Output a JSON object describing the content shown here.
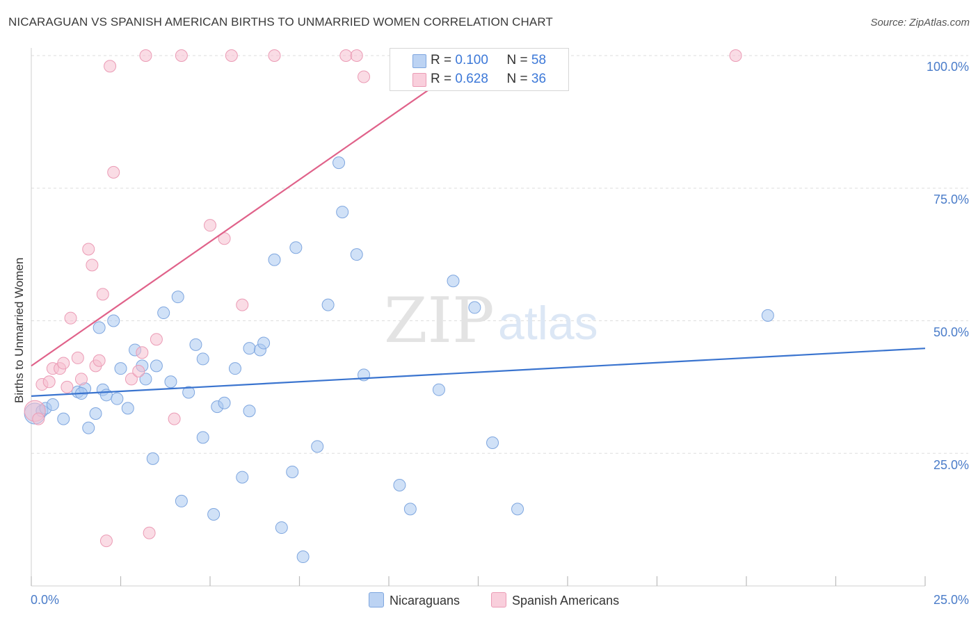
{
  "header": {
    "title": "NICARAGUAN VS SPANISH AMERICAN BIRTHS TO UNMARRIED WOMEN CORRELATION CHART",
    "source": "Source: ZipAtlas.com"
  },
  "watermark": {
    "zip": "ZIP",
    "atlas": "atlas"
  },
  "legend": {
    "r_label": "R =",
    "n_label": "N =",
    "nicaraguans": {
      "r": "0.100",
      "n": "58"
    },
    "spanish": {
      "r": "0.628",
      "n": "36"
    }
  },
  "chart_data": {
    "type": "scatter",
    "title": "NICARAGUAN VS SPANISH AMERICAN BIRTHS TO UNMARRIED WOMEN CORRELATION CHART",
    "xlabel": "",
    "ylabel": "Births to Unmarried Women",
    "xlim": [
      0,
      25
    ],
    "ylim": [
      0,
      102
    ],
    "x_tick_labels": [
      "0.0%",
      "25.0%"
    ],
    "y_tick_labels": [
      "100.0%",
      "75.0%",
      "50.0%",
      "25.0%"
    ],
    "y_ticks": [
      100,
      75,
      50,
      25
    ],
    "colors": {
      "nicaraguans": "#a9c8f0",
      "nicaraguans_line": "#3a74cf",
      "spanish": "#f6bfd0",
      "spanish_line": "#e0628a"
    },
    "series": [
      {
        "name": "Nicaraguans",
        "r": 0.1,
        "n": 58,
        "trend": {
          "x": [
            0,
            25
          ],
          "y": [
            35.8,
            44.8
          ]
        },
        "points": [
          {
            "x": 0.1,
            "y": 32.5,
            "big": true
          },
          {
            "x": 0.3,
            "y": 33.0
          },
          {
            "x": 0.4,
            "y": 33.5
          },
          {
            "x": 0.6,
            "y": 34.2
          },
          {
            "x": 0.9,
            "y": 31.5
          },
          {
            "x": 1.3,
            "y": 36.6
          },
          {
            "x": 1.5,
            "y": 37.2
          },
          {
            "x": 1.4,
            "y": 36.3
          },
          {
            "x": 1.8,
            "y": 32.5
          },
          {
            "x": 1.6,
            "y": 29.8
          },
          {
            "x": 1.9,
            "y": 48.7
          },
          {
            "x": 2.0,
            "y": 37.0
          },
          {
            "x": 2.1,
            "y": 36.0
          },
          {
            "x": 2.3,
            "y": 50.0
          },
          {
            "x": 2.4,
            "y": 35.3
          },
          {
            "x": 2.5,
            "y": 41.0
          },
          {
            "x": 2.7,
            "y": 33.5
          },
          {
            "x": 2.9,
            "y": 44.5
          },
          {
            "x": 3.1,
            "y": 41.5
          },
          {
            "x": 3.2,
            "y": 39.0
          },
          {
            "x": 3.4,
            "y": 24.0
          },
          {
            "x": 3.5,
            "y": 41.5
          },
          {
            "x": 3.7,
            "y": 51.5
          },
          {
            "x": 3.9,
            "y": 38.5
          },
          {
            "x": 4.1,
            "y": 54.5
          },
          {
            "x": 4.2,
            "y": 16.0
          },
          {
            "x": 4.4,
            "y": 36.5
          },
          {
            "x": 4.6,
            "y": 45.5
          },
          {
            "x": 4.8,
            "y": 42.8
          },
          {
            "x": 4.8,
            "y": 28.0
          },
          {
            "x": 5.1,
            "y": 13.5
          },
          {
            "x": 5.2,
            "y": 33.8
          },
          {
            "x": 5.4,
            "y": 34.5
          },
          {
            "x": 5.7,
            "y": 41.0
          },
          {
            "x": 5.9,
            "y": 20.5
          },
          {
            "x": 6.1,
            "y": 33.0
          },
          {
            "x": 6.1,
            "y": 44.8
          },
          {
            "x": 6.4,
            "y": 44.5
          },
          {
            "x": 6.5,
            "y": 45.8
          },
          {
            "x": 6.8,
            "y": 61.5
          },
          {
            "x": 7.0,
            "y": 11.0
          },
          {
            "x": 7.3,
            "y": 21.5
          },
          {
            "x": 7.4,
            "y": 63.8
          },
          {
            "x": 7.6,
            "y": 5.5
          },
          {
            "x": 8.0,
            "y": 26.3
          },
          {
            "x": 8.3,
            "y": 53.0
          },
          {
            "x": 8.6,
            "y": 79.8
          },
          {
            "x": 8.7,
            "y": 70.5
          },
          {
            "x": 9.1,
            "y": 62.5
          },
          {
            "x": 9.3,
            "y": 39.8
          },
          {
            "x": 10.3,
            "y": 19.0
          },
          {
            "x": 10.6,
            "y": 14.5
          },
          {
            "x": 11.4,
            "y": 37.0
          },
          {
            "x": 11.8,
            "y": 57.5
          },
          {
            "x": 12.4,
            "y": 52.5
          },
          {
            "x": 12.9,
            "y": 27.0
          },
          {
            "x": 13.6,
            "y": 14.5
          },
          {
            "x": 20.6,
            "y": 51.0
          }
        ]
      },
      {
        "name": "Spanish Americans",
        "r": 0.628,
        "n": 36,
        "trend": {
          "x": [
            0,
            12.6
          ],
          "y": [
            41.5,
            100.5
          ]
        },
        "points": [
          {
            "x": 0.1,
            "y": 33.0,
            "big": true
          },
          {
            "x": 0.2,
            "y": 31.5
          },
          {
            "x": 0.3,
            "y": 38.0
          },
          {
            "x": 0.5,
            "y": 38.5
          },
          {
            "x": 0.6,
            "y": 41.0
          },
          {
            "x": 0.8,
            "y": 41.0
          },
          {
            "x": 0.9,
            "y": 42.0
          },
          {
            "x": 1.0,
            "y": 37.5
          },
          {
            "x": 1.1,
            "y": 50.5
          },
          {
            "x": 1.3,
            "y": 43.0
          },
          {
            "x": 1.4,
            "y": 39.0
          },
          {
            "x": 1.6,
            "y": 63.5
          },
          {
            "x": 1.7,
            "y": 60.5
          },
          {
            "x": 1.8,
            "y": 41.5
          },
          {
            "x": 1.9,
            "y": 42.5
          },
          {
            "x": 2.0,
            "y": 55.0
          },
          {
            "x": 2.1,
            "y": 8.5
          },
          {
            "x": 2.2,
            "y": 98.0
          },
          {
            "x": 2.3,
            "y": 78.0
          },
          {
            "x": 2.8,
            "y": 39.0
          },
          {
            "x": 3.0,
            "y": 40.5
          },
          {
            "x": 3.1,
            "y": 44.0
          },
          {
            "x": 3.2,
            "y": 100.0
          },
          {
            "x": 3.3,
            "y": 10.0
          },
          {
            "x": 3.5,
            "y": 46.5
          },
          {
            "x": 4.0,
            "y": 31.5
          },
          {
            "x": 4.2,
            "y": 100.0
          },
          {
            "x": 5.0,
            "y": 68.0
          },
          {
            "x": 5.4,
            "y": 65.5
          },
          {
            "x": 5.6,
            "y": 100.0
          },
          {
            "x": 5.9,
            "y": 53.0
          },
          {
            "x": 6.8,
            "y": 100.0
          },
          {
            "x": 8.8,
            "y": 100.0
          },
          {
            "x": 9.1,
            "y": 100.0
          },
          {
            "x": 9.3,
            "y": 96.0
          },
          {
            "x": 19.7,
            "y": 100.0
          }
        ]
      }
    ]
  },
  "bottom_legend": {
    "nicaraguans": "Nicaraguans",
    "spanish": "Spanish Americans"
  }
}
